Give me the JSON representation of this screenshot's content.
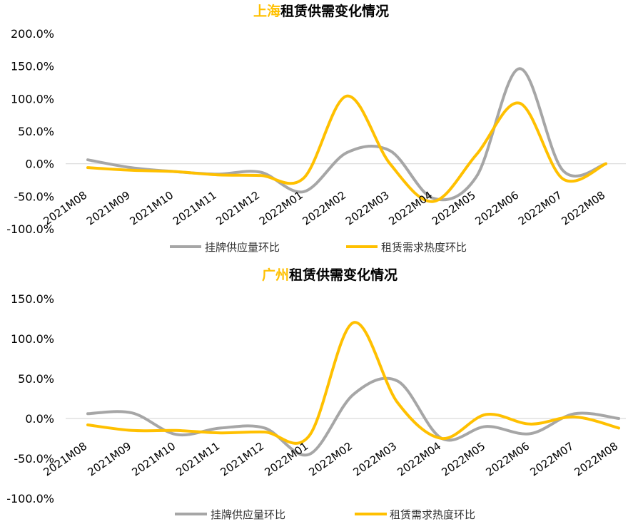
{
  "chart_data": [
    {
      "type": "line",
      "title_highlight": "上海",
      "title_rest": "租赁供需变化情况",
      "categories": [
        "2021M08",
        "2021M09",
        "2021M10",
        "2021M11",
        "2021M12",
        "2022M01",
        "2022M02",
        "2022M03",
        "2022M04",
        "2022M05",
        "2022M06",
        "2022M07",
        "2022M08"
      ],
      "y_ticks": [
        "200.0%",
        "150.0%",
        "100.0%",
        "50.0%",
        "0.0%",
        "-50.0%",
        "-100.0%"
      ],
      "ylim": [
        -100,
        200
      ],
      "series": [
        {
          "name": "挂牌供应量环比",
          "color": "#a6a6a6",
          "values": [
            6,
            -6,
            -12,
            -16,
            -13,
            -43,
            17,
            20,
            -53,
            -20,
            146,
            -10,
            0
          ]
        },
        {
          "name": "租赁需求热度环比",
          "color": "#ffc000",
          "values": [
            -6,
            -10,
            -12,
            -17,
            -18,
            -22,
            104,
            0,
            -58,
            14,
            93,
            -23,
            0
          ]
        }
      ]
    },
    {
      "type": "line",
      "title_highlight": "广州",
      "title_rest": "租赁供需变化情况",
      "categories": [
        "2021M08",
        "2021M09",
        "2021M10",
        "2021M11",
        "2021M12",
        "2022M01",
        "2022M02",
        "2022M03",
        "2022M04",
        "2022M05",
        "2022M06",
        "2022M07",
        "2022M08"
      ],
      "y_ticks": [
        "150.0%",
        "100.0%",
        "50.0%",
        "0.0%",
        "-50.0%",
        "-100.0%"
      ],
      "ylim": [
        -100,
        150
      ],
      "series": [
        {
          "name": "挂牌供应量环比",
          "color": "#a6a6a6",
          "values": [
            6,
            7,
            -20,
            -12,
            -12,
            -45,
            30,
            47,
            -25,
            -10,
            -19,
            6,
            0
          ]
        },
        {
          "name": "租赁需求热度环比",
          "color": "#ffc000",
          "values": [
            -8,
            -15,
            -15,
            -18,
            -17,
            -22,
            120,
            20,
            -25,
            5,
            -7,
            2,
            -12
          ]
        }
      ]
    }
  ],
  "colors": {
    "highlight": "#ffc000",
    "axis": "#d9d9d9"
  }
}
